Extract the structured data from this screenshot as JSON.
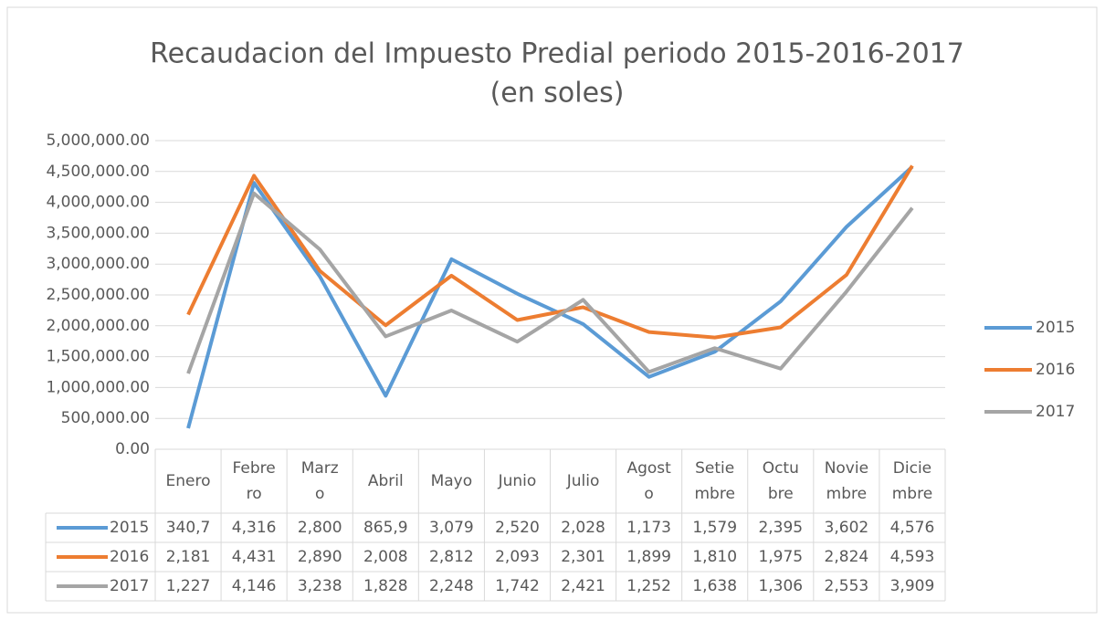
{
  "chart_data": {
    "type": "line",
    "title": [
      "Recaudacion del Impuesto Predial periodo 2015-2016-2017",
      "(en soles)"
    ],
    "categories": [
      [
        "Enero"
      ],
      [
        "Febre",
        "ro"
      ],
      [
        "Marz",
        "o"
      ],
      [
        "Abril"
      ],
      [
        "Mayo"
      ],
      [
        "Junio"
      ],
      [
        "Julio"
      ],
      [
        "Agost",
        "o"
      ],
      [
        "Setie",
        "mbre"
      ],
      [
        "Octu",
        "bre"
      ],
      [
        "Novie",
        "mbre"
      ],
      [
        "Dicie",
        "mbre"
      ]
    ],
    "series": [
      {
        "name": "2015",
        "color": "#5b9bd5",
        "values": [
          340700,
          4316000,
          2800000,
          865900,
          3079000,
          2520000,
          2028000,
          1173000,
          1579000,
          2395000,
          3602000,
          4576000
        ],
        "value_labels": [
          "340,7",
          "4,316",
          "2,800",
          "865,9",
          "3,079",
          "2,520",
          "2,028",
          "1,173",
          "1,579",
          "2,395",
          "3,602",
          "4,576"
        ]
      },
      {
        "name": "2016",
        "color": "#ed7d31",
        "values": [
          2181000,
          4431000,
          2890000,
          2008000,
          2812000,
          2093000,
          2301000,
          1899000,
          1810000,
          1975000,
          2824000,
          4593000
        ],
        "value_labels": [
          "2,181",
          "4,431",
          "2,890",
          "2,008",
          "2,812",
          "2,093",
          "2,301",
          "1,899",
          "1,810",
          "1,975",
          "2,824",
          "4,593"
        ]
      },
      {
        "name": "2017",
        "color": "#a5a5a5",
        "values": [
          1227000,
          4146000,
          3238000,
          1828000,
          2248000,
          1742000,
          2421000,
          1252000,
          1638000,
          1306000,
          2553000,
          3909000
        ],
        "value_labels": [
          "1,227",
          "4,146",
          "3,238",
          "1,828",
          "2,248",
          "1,742",
          "2,421",
          "1,252",
          "1,638",
          "1,306",
          "2,553",
          "3,909"
        ]
      }
    ],
    "ylim": [
      0,
      5000000
    ],
    "yticks": [
      {
        "value": 0,
        "label": "0.00"
      },
      {
        "value": 500000,
        "label": "500,000.00"
      },
      {
        "value": 1000000,
        "label": "1,000,000.00"
      },
      {
        "value": 1500000,
        "label": "1,500,000.00"
      },
      {
        "value": 2000000,
        "label": "2,000,000.00"
      },
      {
        "value": 2500000,
        "label": "2,500,000.00"
      },
      {
        "value": 3000000,
        "label": "3,000,000.00"
      },
      {
        "value": 3500000,
        "label": "3,500,000.00"
      },
      {
        "value": 4000000,
        "label": "4,000,000.00"
      },
      {
        "value": 4500000,
        "label": "4,500,000.00"
      },
      {
        "value": 5000000,
        "label": "5,000,000.00"
      }
    ],
    "grid": true,
    "legend": "right"
  }
}
